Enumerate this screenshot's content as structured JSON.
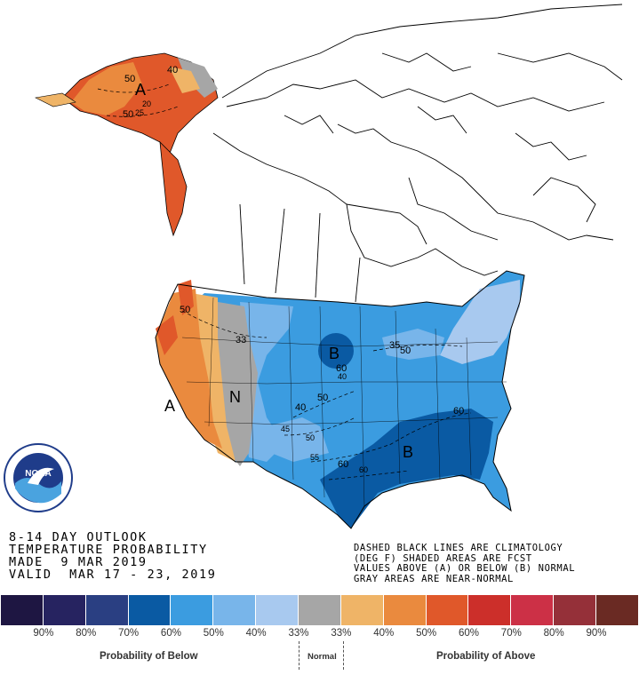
{
  "outlook": {
    "line1": "8-14 DAY OUTLOOK",
    "line2": "TEMPERATURE PROBABILITY",
    "line3": "MADE  9 MAR 2019",
    "line4": "VALID  MAR 17 - 23, 2019"
  },
  "notes": {
    "line1": "DASHED BLACK LINES ARE CLIMATOLOGY",
    "line2": "(DEG F) SHADED AREAS ARE FCST",
    "line3": "VALUES ABOVE (A) OR BELOW (B) NORMAL",
    "line4": "GRAY AREAS ARE NEAR-NORMAL"
  },
  "logo": {
    "text": "NOAA"
  },
  "region_labels": {
    "ak_a": "A",
    "ca_a": "A",
    "n": "N",
    "b_north": "B",
    "b_south": "B"
  },
  "contours": {
    "ak50": "50",
    "ak40": "40",
    "ak20": "20",
    "ak25": "25",
    "ak50b": "50",
    "wc50": "50",
    "w33": "33",
    "mw35": "35",
    "mw50": "50",
    "mw60": "60",
    "mw40": "40",
    "cp50": "50",
    "cp40": "40",
    "cp45": "45",
    "cp50b": "50",
    "cp55": "55",
    "se60": "60",
    "se60b": "60",
    "se60c": "60"
  },
  "legend": {
    "colors": [
      "#1e1642",
      "#262360",
      "#2a3f82",
      "#0a5aa3",
      "#3b9ce0",
      "#78b5ea",
      "#a8c9ef",
      "#a6a6a6",
      "#efb467",
      "#ea8a3e",
      "#e0582a",
      "#cc2f2a",
      "#cc3046",
      "#953039",
      "#6a2a23"
    ],
    "percent_labels": [
      "90%",
      "80%",
      "70%",
      "60%",
      "50%",
      "40%",
      "33%",
      "33%",
      "40%",
      "50%",
      "60%",
      "70%",
      "80%",
      "90%"
    ],
    "below_caption": "Probability of Below",
    "normal_caption": "Normal",
    "above_caption": "Probability of Above"
  }
}
